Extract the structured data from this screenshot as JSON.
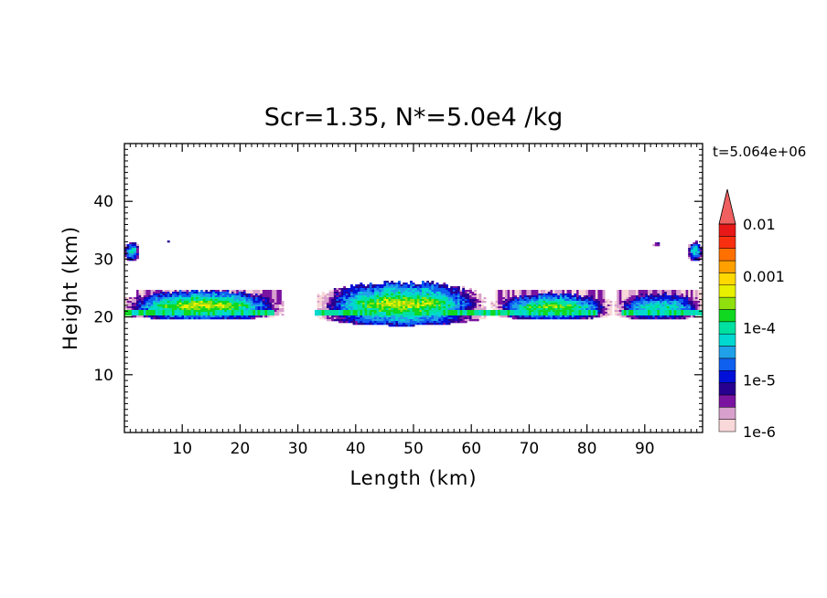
{
  "chart_data": {
    "type": "contour",
    "title": "Scr=1.35, N*=5.0e4 /kg",
    "time_label": "t=5.064e+06",
    "xlabel": "Length  (km)",
    "ylabel": "Height  (km)",
    "xlim": [
      0,
      100
    ],
    "ylim": [
      0,
      50
    ],
    "x_ticks": [
      10,
      20,
      30,
      40,
      50,
      60,
      70,
      80,
      90
    ],
    "y_ticks": [
      10,
      20,
      30,
      40
    ],
    "colorbar": {
      "scale": "log",
      "range": [
        1e-06,
        0.01
      ],
      "extend": "max",
      "labels": [
        {
          "text": "0.01",
          "value": 0.01
        },
        {
          "text": "0.001",
          "value": 0.001
        },
        {
          "text": "1e-4",
          "value": 0.0001
        },
        {
          "text": "1e-5",
          "value": 1e-05
        },
        {
          "text": "1e-6",
          "value": 1e-06
        }
      ],
      "colors": [
        "#f8d8d8",
        "#d8a0cc",
        "#7a14a0",
        "#280090",
        "#0010d8",
        "#1060f0",
        "#20a0e8",
        "#00d8d0",
        "#00e0a0",
        "#10d820",
        "#90e010",
        "#e8f000",
        "#ffd800",
        "#ffa000",
        "#ff7000",
        "#f83010",
        "#e81818"
      ],
      "extend_color": "#f06060"
    },
    "features": [
      {
        "name": "left-cloud-band",
        "x": [
          0,
          27
        ],
        "y": [
          19.5,
          24.5
        ],
        "peak_level": 11
      },
      {
        "name": "central-cloud",
        "x": [
          34,
          62
        ],
        "y": [
          18.5,
          26
        ],
        "peak_level": 11
      },
      {
        "name": "right-cloud-band",
        "x": [
          64,
          84
        ],
        "y": [
          19.5,
          24
        ],
        "peak_level": 10
      },
      {
        "name": "far-right-cloud-band",
        "x": [
          85,
          100
        ],
        "y": [
          19.5,
          24
        ],
        "peak_level": 8
      },
      {
        "name": "left-edge-blob",
        "x": [
          0,
          2.5
        ],
        "y": [
          29.8,
          33
        ],
        "peak_level": 8
      },
      {
        "name": "right-edge-blob",
        "x": [
          97.5,
          100
        ],
        "y": [
          29.8,
          33
        ],
        "peak_level": 8
      },
      {
        "name": "small-dot-1",
        "x": [
          7.5,
          8
        ],
        "y": [
          32.8,
          33.4
        ],
        "peak_level": 4
      },
      {
        "name": "small-dot-2",
        "x": [
          91.5,
          92.5
        ],
        "y": [
          32.3,
          33
        ],
        "peak_level": 4
      }
    ]
  }
}
